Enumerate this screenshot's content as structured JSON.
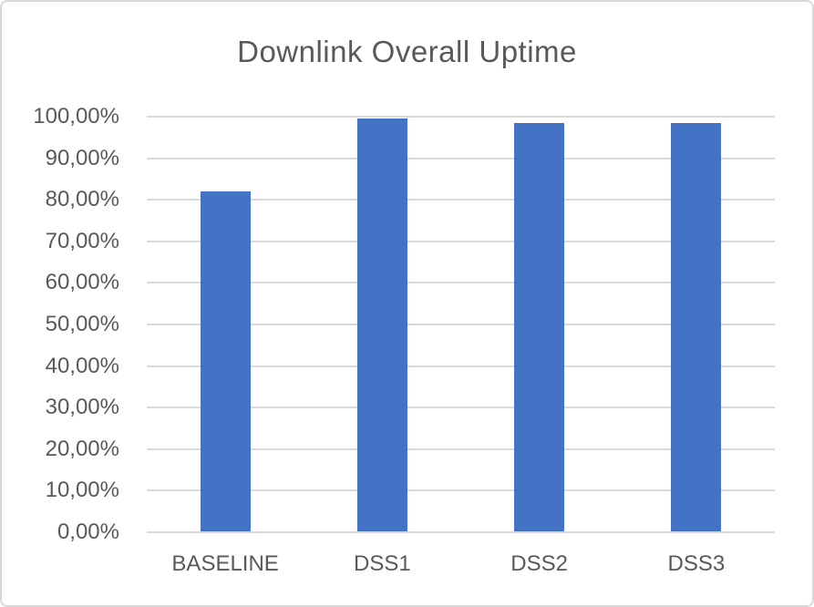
{
  "chart_data": {
    "type": "bar",
    "title": "Downlink Overall Uptime",
    "categories": [
      "BASELINE",
      "DSS1",
      "DSS2",
      "DSS3"
    ],
    "values": [
      82.0,
      99.5,
      98.5,
      98.5
    ],
    "value_unit": "percent",
    "decimal_separator": ",",
    "xlabel": "",
    "ylabel": "",
    "ylim": [
      0,
      100
    ],
    "ytick_step": 10,
    "ytick_labels": [
      "0,00%",
      "10,00%",
      "20,00%",
      "30,00%",
      "40,00%",
      "50,00%",
      "60,00%",
      "70,00%",
      "80,00%",
      "90,00%",
      "100,00%"
    ],
    "grid": true,
    "legend": "none",
    "colors": {
      "bar": "#4472C4",
      "gridline": "#D9D9D9",
      "axis_line": "#D9D9D9",
      "text": "#595959",
      "background": "#FFFFFF",
      "frame_border": "#D8D8D8"
    }
  }
}
